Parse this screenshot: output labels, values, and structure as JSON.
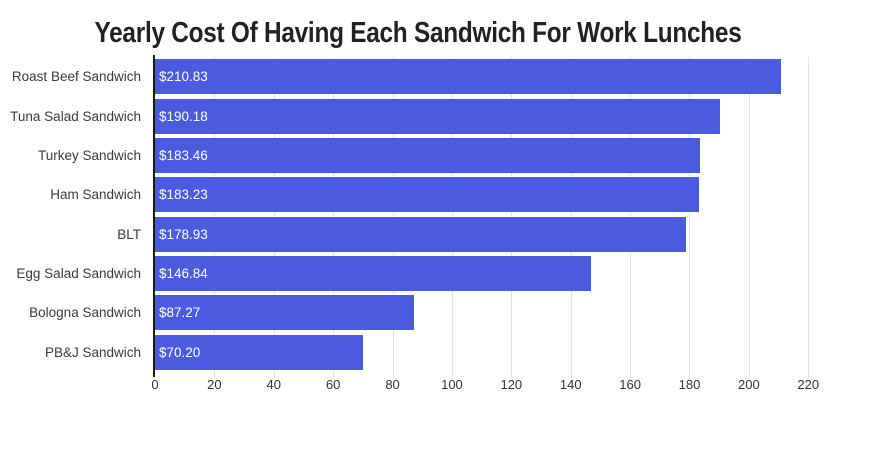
{
  "chart_data": {
    "type": "bar",
    "orientation": "horizontal",
    "title": "Yearly Cost Of Having Each Sandwich For Work Lunches",
    "categories": [
      "Roast Beef Sandwich",
      "Tuna Salad Sandwich",
      "Turkey Sandwich",
      "Ham Sandwich",
      "BLT",
      "Egg Salad Sandwich",
      "Bologna Sandwich",
      "PB&J Sandwich"
    ],
    "values": [
      210.83,
      190.18,
      183.46,
      183.23,
      178.93,
      146.84,
      87.27,
      70.2
    ],
    "value_labels": [
      "$210.83",
      "$190.18",
      "$183.46",
      "$183.23",
      "$178.93",
      "$146.84",
      "$87.27",
      "$70.20"
    ],
    "xlabel": "",
    "ylabel": "",
    "x_ticks": [
      0,
      20,
      40,
      60,
      80,
      100,
      120,
      140,
      160,
      180,
      200,
      220
    ],
    "xlim": [
      0,
      229
    ],
    "grid": true,
    "legend": false,
    "colors": {
      "bar": "#4b5be0",
      "bar_label": "#ffffff",
      "axis_line": "#1b1b1b",
      "gridline": "#e3e3e3",
      "tick_label": "#333333",
      "category_label": "#3b3b3b",
      "title": "#222222",
      "background": "#ffffff"
    }
  }
}
